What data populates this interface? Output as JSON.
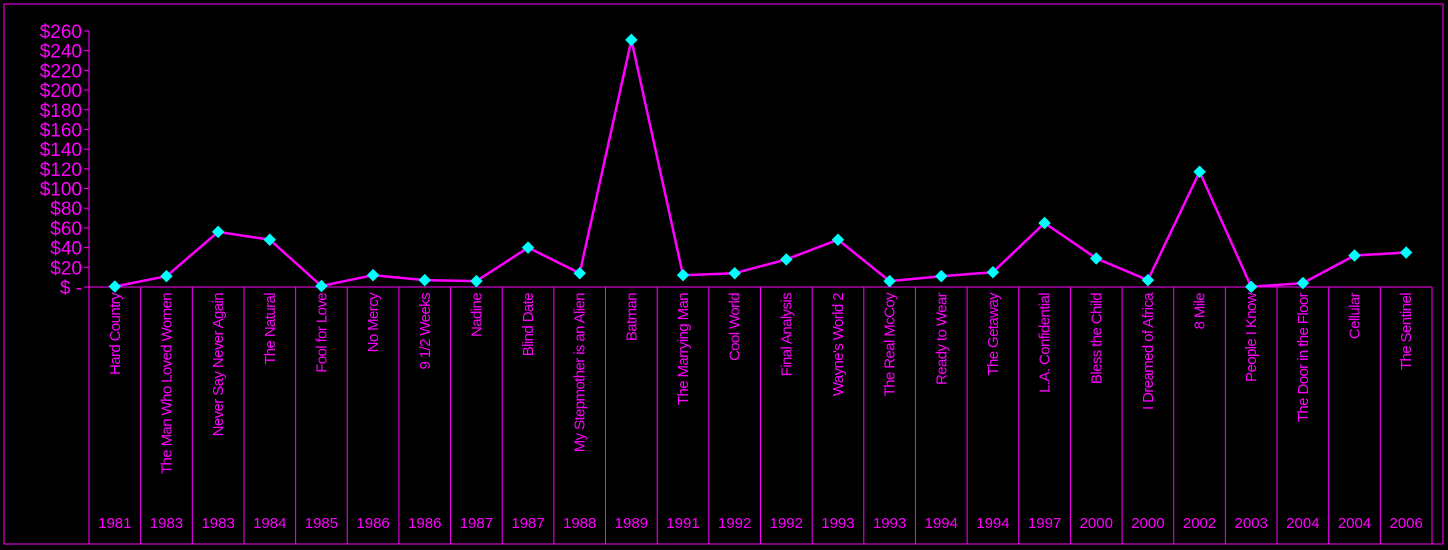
{
  "chart_data": {
    "type": "line",
    "title": "",
    "xlabel": "",
    "ylabel": "",
    "ylim": [
      0,
      260
    ],
    "y_ticks": [
      "$ -",
      "$20",
      "$40",
      "$60",
      "$80",
      "$100",
      "$120",
      "$140",
      "$160",
      "$180",
      "$200",
      "$220",
      "$240",
      "$260"
    ],
    "grid": false,
    "legend": "none",
    "categories": [
      {
        "film": "Hard Country",
        "year": "1981"
      },
      {
        "film": "The Man Who Loved Women",
        "year": "1983"
      },
      {
        "film": "Never Say Never Again",
        "year": "1983"
      },
      {
        "film": "The Natural",
        "year": "1984"
      },
      {
        "film": "Fool for Love",
        "year": "1985"
      },
      {
        "film": "No Mercy",
        "year": "1986"
      },
      {
        "film": "9 1/2 Weeks",
        "year": "1986"
      },
      {
        "film": "Nadine",
        "year": "1987"
      },
      {
        "film": "Blind Date",
        "year": "1987"
      },
      {
        "film": "My Stepmother is an Alien",
        "year": "1988"
      },
      {
        "film": "Batman",
        "year": "1989"
      },
      {
        "film": "The Marrying Man",
        "year": "1991"
      },
      {
        "film": "Cool World",
        "year": "1992"
      },
      {
        "film": "Final Analysis",
        "year": "1992"
      },
      {
        "film": "Wayne's World 2",
        "year": "1993"
      },
      {
        "film": "The Real McCoy",
        "year": "1993"
      },
      {
        "film": "Ready to Wear",
        "year": "1994"
      },
      {
        "film": "The Getaway",
        "year": "1994"
      },
      {
        "film": "L.A. Confidential",
        "year": "1997"
      },
      {
        "film": "Bless the Child",
        "year": "2000"
      },
      {
        "film": "I Dreamed of Africa",
        "year": "2000"
      },
      {
        "film": "8 Mile",
        "year": "2002"
      },
      {
        "film": "People I Know",
        "year": "2003"
      },
      {
        "film": "The Door in the Floor",
        "year": "2004"
      },
      {
        "film": "Cellular",
        "year": "2004"
      },
      {
        "film": "The Sentinel",
        "year": "2006"
      }
    ],
    "series": [
      {
        "values": [
          0.5,
          11,
          56,
          48,
          1,
          12,
          7,
          6,
          40,
          14,
          251,
          12,
          14,
          28,
          48,
          6,
          11,
          15,
          65,
          29,
          7,
          117,
          0.2,
          4,
          32,
          35
        ]
      }
    ],
    "colors": {
      "background": "#000000",
      "text": "#FF00FF",
      "line": "#FF00FF",
      "marker": "#00FFFF",
      "axis": "#FF00FF"
    }
  }
}
